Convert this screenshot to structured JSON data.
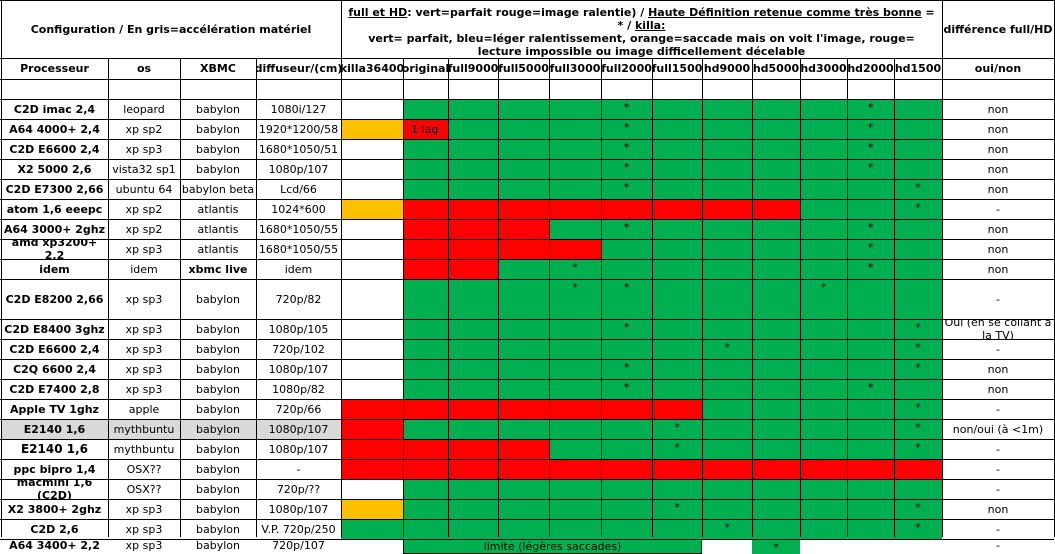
{
  "header": {
    "config": "Configuration / En gris=accélération matériel",
    "legend_u1": "full et HD",
    "legend_t1": ": vert=parfait rouge=image ralentie) / ",
    "legend_u2": "Haute Définition retenue comme très bonne",
    "legend_t2": " = * / ",
    "legend_u3": "killa:",
    "legend_line2": "vert= parfait, bleu=léger ralentissement, orange=saccade mais on voit l'image, rouge= lecture impossible ou image difficellement décelable",
    "diff": "différence full/HD"
  },
  "columns": [
    "Processeur",
    "os",
    "XBMC",
    "diffuseur/(cm)",
    "killa36400",
    "original",
    "full9000",
    "full5000",
    "full3000",
    "full2000",
    "full1500",
    "hd9000",
    "hd5000",
    "hd3000",
    "hd2000",
    "hd1500",
    "oui/non"
  ],
  "colors": {
    "red": "#ff0000",
    "green": "#00b050",
    "orange": "#ffc000",
    "gray": "#d9d9d9"
  },
  "rows": [
    {
      "cpu": "C2D imac 2,4",
      "os": "leopard",
      "xbmc": "babylon",
      "screen": "1080i/127",
      "k": "",
      "o": "",
      "cells": "GGGGGGGGGGG",
      "stars": [
        4,
        9
      ],
      "diff": "non"
    },
    {
      "cpu": "A64 4000+ 2,4",
      "os": "xp sp2",
      "xbmc": "babylon",
      "screen": "1920*1200/58",
      "k": "O",
      "o": "R",
      "otext": "1 lag",
      "cells": "GGGGGGGGGGG",
      "stars": [
        4,
        9
      ],
      "diff": "non"
    },
    {
      "cpu": "C2D E6600 2,4",
      "os": "xp sp3",
      "xbmc": "babylon",
      "screen": "1680*1050/51",
      "k": "",
      "o": "",
      "cells": "GGGGGGGGGGG",
      "stars": [
        4,
        9
      ],
      "diff": "non"
    },
    {
      "cpu": "X2 5000 2,6",
      "os": "vista32 sp1",
      "xbmc": "babylon",
      "screen": "1080p/107",
      "k": "",
      "o": "",
      "cells": "GGGGGGGGGGG",
      "stars": [
        4,
        9
      ],
      "diff": "non"
    },
    {
      "cpu": "C2D E7300 2,66",
      "os": "ubuntu 64",
      "xbmc": "babylon beta",
      "screen": "Lcd/66",
      "k": "",
      "o": "",
      "cells": "GGGGGGGGGGG",
      "stars": [
        4,
        10
      ],
      "diff": "non"
    },
    {
      "cpu": "atom 1,6 eeepc",
      "os": "xp sp2",
      "xbmc": "atlantis",
      "screen": "1024*600",
      "k": "O",
      "o": "",
      "cells": "RRRRRRRRGGG",
      "stars": [
        10
      ],
      "diff": "-"
    },
    {
      "cpu": "A64 3000+ 2ghz",
      "os": "xp sp2",
      "xbmc": "atlantis",
      "screen": "1680*1050/55",
      "k": "",
      "o": "",
      "cells": "RRRGGGGGGGG",
      "stars": [
        4,
        9
      ],
      "diff": "non"
    },
    {
      "cpu": "amd xp3200+ 2,2",
      "os": "xp sp3",
      "xbmc": "atlantis",
      "screen": "1680*1050/55",
      "k": "",
      "o": "",
      "cells": "RRRRGGGGGGG",
      "stars": [
        9
      ],
      "diff": "non"
    },
    {
      "cpu": "idem",
      "os": "idem",
      "xbmc": "xbmc live",
      "xbmcbold": true,
      "screen": "idem",
      "k": "",
      "o": "",
      "cells": "RRGGGGGGGGG",
      "stars": [
        3,
        9
      ],
      "diff": "non"
    },
    {
      "cpu": "C2D E8200 2,66",
      "os": "xp sp3",
      "xbmc": "babylon",
      "screen": "720p/82",
      "k": "",
      "o": "",
      "cells": "GGGGGGGGGGG",
      "stars": [
        3,
        4,
        8
      ],
      "diff": "-"
    },
    {
      "cpu": "C2D E8400 3ghz",
      "os": "xp sp3",
      "xbmc": "babylon",
      "screen": "1080p/105",
      "k": "",
      "o": "",
      "cells": "GGGGGGGGGGG",
      "stars": [
        4,
        10
      ],
      "diff": "Oui (en se collant à la TV)",
      "tall": true
    },
    {
      "cpu": "C2D E6600 2,4",
      "os": "xp sp3",
      "xbmc": "babylon",
      "screen": "720p/102",
      "k": "",
      "o": "",
      "cells": "GGGGGGGGGGG",
      "stars": [
        6,
        10
      ],
      "diff": "-"
    },
    {
      "cpu": "C2Q 6600 2,4",
      "os": "xp sp3",
      "xbmc": "babylon",
      "screen": "1080p/107",
      "k": "",
      "o": "",
      "cells": "GGGGGGGGGGG",
      "stars": [
        4,
        10
      ],
      "diff": "non"
    },
    {
      "cpu": "C2D E7400 2,8",
      "os": "xp sp3",
      "xbmc": "babylon",
      "screen": "1080p/82",
      "k": "",
      "o": "",
      "cells": "GGGGGGGGGGG",
      "stars": [
        4,
        9
      ],
      "diff": "non"
    },
    {
      "cpu": "Apple TV 1ghz",
      "os": "apple",
      "xbmc": "babylon",
      "screen": "720p/66",
      "k": "R",
      "o": "",
      "cells": "RRRRRRGGGGG",
      "stars": [
        10
      ],
      "diff": "-"
    },
    {
      "cpu": "E2140 1,6",
      "os": "mythbuntu",
      "xbmc": "babylon",
      "screen": "1080p/107",
      "k": "R",
      "o": "",
      "cells": "GGGGGGGGGGG",
      "stars": [
        5,
        10
      ],
      "diff": "non/oui (à <1m)",
      "gray": true
    },
    {
      "cpu": "E2140 1,6",
      "os": "mythbuntu",
      "xbmc": "babylon",
      "screen": "1080p/107",
      "k": "R",
      "o": "",
      "cells": "RRRGGGGGGGG",
      "stars": [
        5,
        10
      ],
      "diff": "-",
      "big": true
    },
    {
      "cpu": "ppc bipro 1,4",
      "os": "OSX??",
      "xbmc": "babylon",
      "screen": "-",
      "k": "R",
      "o": "",
      "cells": "RRRRRRRRRRR",
      "stars": [],
      "diff": "-"
    },
    {
      "cpu": "macmini 1,6 (C2D)",
      "os": "OSX??",
      "xbmc": "babylon",
      "screen": "720p/??",
      "k": "",
      "o": "",
      "cells": "GGGGGGGGGGG",
      "stars": [],
      "diff": "-"
    },
    {
      "cpu": "X2 3800+ 2ghz",
      "os": "xp sp3",
      "xbmc": "babylon",
      "screen": "1080p/107",
      "k": "O",
      "o": "",
      "cells": "GGGGGGGGGGG",
      "stars": [
        5,
        10
      ],
      "diff": "non"
    },
    {
      "cpu": "C2D 2,6",
      "os": "xp sp3",
      "xbmc": "babylon",
      "screen": "V.P. 720p/250",
      "k": "G",
      "o": "",
      "cells": "GGGGGGGGGGG",
      "stars": [
        6,
        10
      ],
      "diff": "-"
    },
    {
      "cpu": "A64 3400+ 2,2",
      "os": "xp sp3",
      "xbmc": "babylon",
      "screen": "720p/107",
      "k": "O",
      "o": "",
      "cells": "GGGGGGGGGGG",
      "stars": [
        7
      ],
      "merged": "limite (légères saccades)",
      "diff": "-"
    }
  ]
}
